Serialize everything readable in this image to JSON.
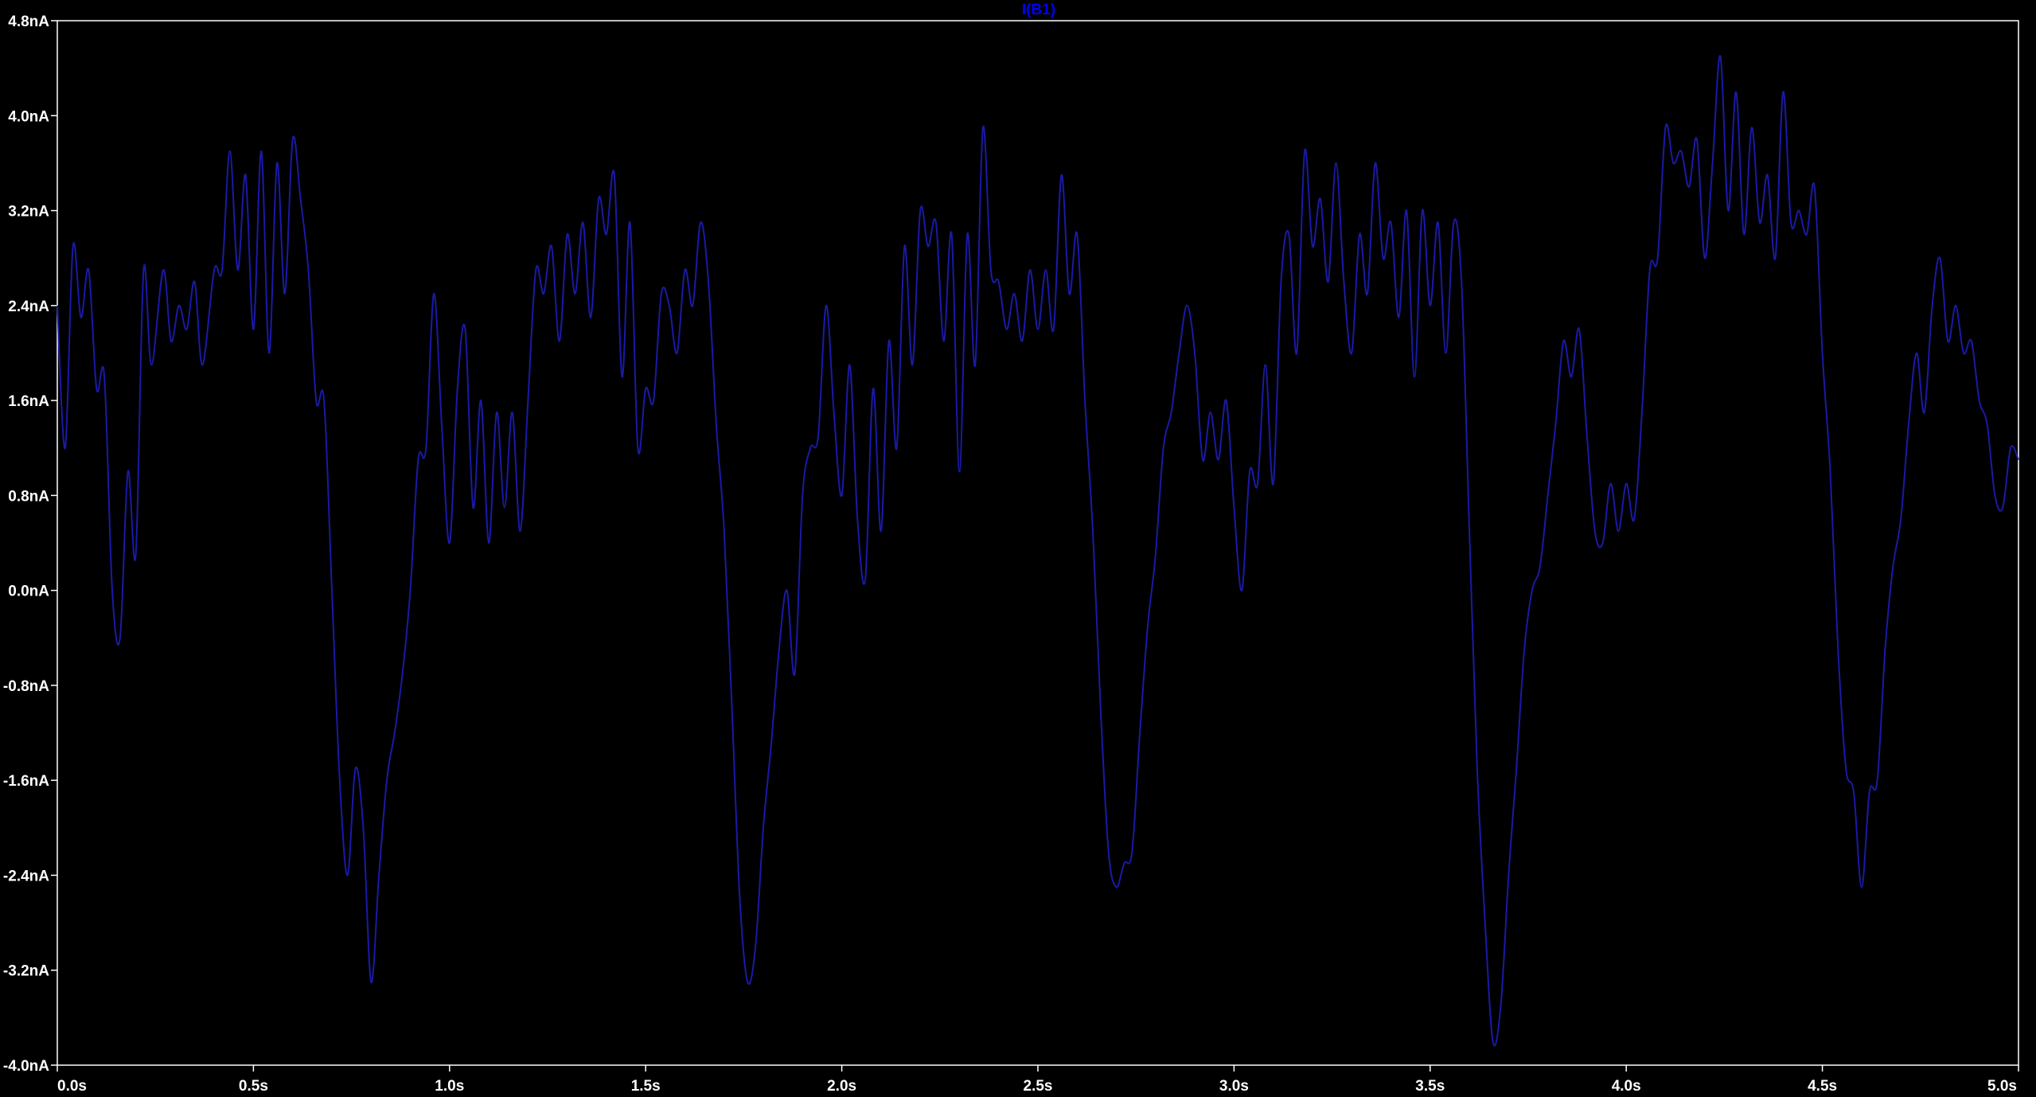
{
  "chart_data": {
    "type": "line",
    "title": "I(B1)",
    "title_color": "#0000ff",
    "background_color": "#000000",
    "axis_color": "#ffffff",
    "tick_label_color": "#ffffff",
    "trace_color": "#1a1aa6",
    "grid": false,
    "xlim": [
      0.0,
      5.0
    ],
    "ylim": [
      -4.0,
      4.8
    ],
    "x_ticks": [
      {
        "value": 0.0,
        "label": "0.0s"
      },
      {
        "value": 0.5,
        "label": "0.5s"
      },
      {
        "value": 1.0,
        "label": "1.0s"
      },
      {
        "value": 1.5,
        "label": "1.5s"
      },
      {
        "value": 2.0,
        "label": "2.0s"
      },
      {
        "value": 2.5,
        "label": "2.5s"
      },
      {
        "value": 3.0,
        "label": "3.0s"
      },
      {
        "value": 3.5,
        "label": "3.5s"
      },
      {
        "value": 4.0,
        "label": "4.0s"
      },
      {
        "value": 4.5,
        "label": "4.5s"
      },
      {
        "value": 5.0,
        "label": "5.0s"
      }
    ],
    "y_ticks": [
      {
        "value": 4.8,
        "label": "4.8nA"
      },
      {
        "value": 4.0,
        "label": "4.0nA"
      },
      {
        "value": 3.2,
        "label": "3.2nA"
      },
      {
        "value": 2.4,
        "label": "2.4nA"
      },
      {
        "value": 1.6,
        "label": "1.6nA"
      },
      {
        "value": 0.8,
        "label": "0.8nA"
      },
      {
        "value": 0.0,
        "label": "0.0nA"
      },
      {
        "value": -0.8,
        "label": "-0.8nA"
      },
      {
        "value": -1.6,
        "label": "-1.6nA"
      },
      {
        "value": -2.4,
        "label": "-2.4nA"
      },
      {
        "value": -3.2,
        "label": "-3.2nA"
      },
      {
        "value": -4.0,
        "label": "-4.0nA"
      }
    ],
    "series": [
      {
        "points": [
          [
            0.0,
            2.4
          ],
          [
            0.02,
            1.2
          ],
          [
            0.04,
            2.9
          ],
          [
            0.06,
            2.3
          ],
          [
            0.08,
            2.7
          ],
          [
            0.1,
            1.7
          ],
          [
            0.12,
            1.8
          ],
          [
            0.14,
            0.0
          ],
          [
            0.16,
            -0.4
          ],
          [
            0.18,
            1.0
          ],
          [
            0.2,
            0.3
          ],
          [
            0.22,
            2.7
          ],
          [
            0.24,
            1.9
          ],
          [
            0.27,
            2.7
          ],
          [
            0.29,
            2.1
          ],
          [
            0.31,
            2.4
          ],
          [
            0.33,
            2.2
          ],
          [
            0.35,
            2.6
          ],
          [
            0.37,
            1.9
          ],
          [
            0.4,
            2.7
          ],
          [
            0.42,
            2.7
          ],
          [
            0.44,
            3.7
          ],
          [
            0.46,
            2.7
          ],
          [
            0.48,
            3.5
          ],
          [
            0.5,
            2.2
          ],
          [
            0.52,
            3.7
          ],
          [
            0.54,
            2.0
          ],
          [
            0.56,
            3.6
          ],
          [
            0.58,
            2.5
          ],
          [
            0.6,
            3.8
          ],
          [
            0.62,
            3.3
          ],
          [
            0.64,
            2.7
          ],
          [
            0.66,
            1.6
          ],
          [
            0.68,
            1.6
          ],
          [
            0.7,
            0.0
          ],
          [
            0.72,
            -1.6
          ],
          [
            0.74,
            -2.4
          ],
          [
            0.76,
            -1.5
          ],
          [
            0.78,
            -2.0
          ],
          [
            0.8,
            -3.3
          ],
          [
            0.82,
            -2.4
          ],
          [
            0.84,
            -1.6
          ],
          [
            0.86,
            -1.2
          ],
          [
            0.88,
            -0.7
          ],
          [
            0.9,
            0.0
          ],
          [
            0.92,
            1.1
          ],
          [
            0.94,
            1.2
          ],
          [
            0.96,
            2.5
          ],
          [
            0.98,
            1.4
          ],
          [
            1.0,
            0.4
          ],
          [
            1.02,
            1.7
          ],
          [
            1.04,
            2.2
          ],
          [
            1.06,
            0.7
          ],
          [
            1.08,
            1.6
          ],
          [
            1.1,
            0.4
          ],
          [
            1.12,
            1.5
          ],
          [
            1.14,
            0.7
          ],
          [
            1.16,
            1.5
          ],
          [
            1.18,
            0.5
          ],
          [
            1.2,
            1.6
          ],
          [
            1.22,
            2.7
          ],
          [
            1.24,
            2.5
          ],
          [
            1.26,
            2.9
          ],
          [
            1.28,
            2.1
          ],
          [
            1.3,
            3.0
          ],
          [
            1.32,
            2.5
          ],
          [
            1.34,
            3.1
          ],
          [
            1.36,
            2.3
          ],
          [
            1.38,
            3.3
          ],
          [
            1.4,
            3.0
          ],
          [
            1.42,
            3.5
          ],
          [
            1.44,
            1.8
          ],
          [
            1.46,
            3.1
          ],
          [
            1.48,
            1.2
          ],
          [
            1.5,
            1.7
          ],
          [
            1.52,
            1.6
          ],
          [
            1.54,
            2.5
          ],
          [
            1.56,
            2.4
          ],
          [
            1.58,
            2.0
          ],
          [
            1.6,
            2.7
          ],
          [
            1.62,
            2.4
          ],
          [
            1.64,
            3.1
          ],
          [
            1.66,
            2.6
          ],
          [
            1.68,
            1.4
          ],
          [
            1.7,
            0.5
          ],
          [
            1.72,
            -1.0
          ],
          [
            1.74,
            -2.6
          ],
          [
            1.76,
            -3.3
          ],
          [
            1.78,
            -3.0
          ],
          [
            1.8,
            -2.0
          ],
          [
            1.82,
            -1.3
          ],
          [
            1.84,
            -0.5
          ],
          [
            1.86,
            0.0
          ],
          [
            1.88,
            -0.7
          ],
          [
            1.9,
            0.8
          ],
          [
            1.92,
            1.2
          ],
          [
            1.94,
            1.3
          ],
          [
            1.96,
            2.4
          ],
          [
            1.98,
            1.5
          ],
          [
            2.0,
            0.8
          ],
          [
            2.02,
            1.9
          ],
          [
            2.04,
            0.6
          ],
          [
            2.06,
            0.1
          ],
          [
            2.08,
            1.7
          ],
          [
            2.1,
            0.5
          ],
          [
            2.12,
            2.1
          ],
          [
            2.14,
            1.2
          ],
          [
            2.16,
            2.9
          ],
          [
            2.18,
            1.9
          ],
          [
            2.2,
            3.2
          ],
          [
            2.22,
            2.9
          ],
          [
            2.24,
            3.1
          ],
          [
            2.26,
            2.1
          ],
          [
            2.28,
            3.0
          ],
          [
            2.3,
            1.0
          ],
          [
            2.32,
            3.0
          ],
          [
            2.34,
            1.9
          ],
          [
            2.36,
            3.9
          ],
          [
            2.38,
            2.7
          ],
          [
            2.4,
            2.6
          ],
          [
            2.42,
            2.2
          ],
          [
            2.44,
            2.5
          ],
          [
            2.46,
            2.1
          ],
          [
            2.48,
            2.7
          ],
          [
            2.5,
            2.2
          ],
          [
            2.52,
            2.7
          ],
          [
            2.54,
            2.2
          ],
          [
            2.56,
            3.5
          ],
          [
            2.58,
            2.5
          ],
          [
            2.6,
            3.0
          ],
          [
            2.62,
            1.6
          ],
          [
            2.64,
            0.5
          ],
          [
            2.66,
            -1.0
          ],
          [
            2.68,
            -2.2
          ],
          [
            2.7,
            -2.5
          ],
          [
            2.72,
            -2.3
          ],
          [
            2.74,
            -2.2
          ],
          [
            2.76,
            -1.2
          ],
          [
            2.78,
            -0.3
          ],
          [
            2.8,
            0.3
          ],
          [
            2.82,
            1.2
          ],
          [
            2.84,
            1.5
          ],
          [
            2.86,
            2.0
          ],
          [
            2.88,
            2.4
          ],
          [
            2.9,
            2.0
          ],
          [
            2.92,
            1.1
          ],
          [
            2.94,
            1.5
          ],
          [
            2.96,
            1.1
          ],
          [
            2.98,
            1.6
          ],
          [
            3.0,
            0.7
          ],
          [
            3.02,
            0.0
          ],
          [
            3.04,
            1.0
          ],
          [
            3.06,
            0.9
          ],
          [
            3.08,
            1.9
          ],
          [
            3.1,
            0.9
          ],
          [
            3.12,
            2.6
          ],
          [
            3.14,
            3.0
          ],
          [
            3.16,
            2.0
          ],
          [
            3.18,
            3.7
          ],
          [
            3.2,
            2.9
          ],
          [
            3.22,
            3.3
          ],
          [
            3.24,
            2.6
          ],
          [
            3.26,
            3.6
          ],
          [
            3.28,
            2.6
          ],
          [
            3.3,
            2.0
          ],
          [
            3.32,
            3.0
          ],
          [
            3.34,
            2.5
          ],
          [
            3.36,
            3.6
          ],
          [
            3.38,
            2.8
          ],
          [
            3.4,
            3.1
          ],
          [
            3.42,
            2.3
          ],
          [
            3.44,
            3.2
          ],
          [
            3.46,
            1.8
          ],
          [
            3.48,
            3.2
          ],
          [
            3.5,
            2.4
          ],
          [
            3.52,
            3.1
          ],
          [
            3.54,
            2.0
          ],
          [
            3.56,
            3.1
          ],
          [
            3.58,
            2.6
          ],
          [
            3.6,
            0.5
          ],
          [
            3.62,
            -1.5
          ],
          [
            3.64,
            -2.8
          ],
          [
            3.66,
            -3.8
          ],
          [
            3.68,
            -3.5
          ],
          [
            3.7,
            -2.4
          ],
          [
            3.72,
            -1.5
          ],
          [
            3.74,
            -0.5
          ],
          [
            3.76,
            0.0
          ],
          [
            3.78,
            0.2
          ],
          [
            3.8,
            0.8
          ],
          [
            3.82,
            1.4
          ],
          [
            3.84,
            2.1
          ],
          [
            3.86,
            1.8
          ],
          [
            3.88,
            2.2
          ],
          [
            3.9,
            1.3
          ],
          [
            3.92,
            0.5
          ],
          [
            3.94,
            0.4
          ],
          [
            3.96,
            0.9
          ],
          [
            3.98,
            0.5
          ],
          [
            4.0,
            0.9
          ],
          [
            4.02,
            0.6
          ],
          [
            4.04,
            1.5
          ],
          [
            4.06,
            2.7
          ],
          [
            4.08,
            2.8
          ],
          [
            4.1,
            3.9
          ],
          [
            4.12,
            3.6
          ],
          [
            4.14,
            3.7
          ],
          [
            4.16,
            3.4
          ],
          [
            4.18,
            3.8
          ],
          [
            4.2,
            2.8
          ],
          [
            4.22,
            3.6
          ],
          [
            4.24,
            4.5
          ],
          [
            4.26,
            3.2
          ],
          [
            4.28,
            4.2
          ],
          [
            4.3,
            3.0
          ],
          [
            4.32,
            3.9
          ],
          [
            4.34,
            3.1
          ],
          [
            4.36,
            3.5
          ],
          [
            4.38,
            2.8
          ],
          [
            4.4,
            4.2
          ],
          [
            4.42,
            3.1
          ],
          [
            4.44,
            3.2
          ],
          [
            4.46,
            3.0
          ],
          [
            4.48,
            3.4
          ],
          [
            4.5,
            2.0
          ],
          [
            4.52,
            1.0
          ],
          [
            4.54,
            -0.5
          ],
          [
            4.56,
            -1.5
          ],
          [
            4.58,
            -1.7
          ],
          [
            4.6,
            -2.5
          ],
          [
            4.62,
            -1.7
          ],
          [
            4.64,
            -1.6
          ],
          [
            4.66,
            -0.5
          ],
          [
            4.68,
            0.2
          ],
          [
            4.7,
            0.6
          ],
          [
            4.72,
            1.4
          ],
          [
            4.74,
            2.0
          ],
          [
            4.76,
            1.5
          ],
          [
            4.78,
            2.4
          ],
          [
            4.8,
            2.8
          ],
          [
            4.82,
            2.1
          ],
          [
            4.84,
            2.4
          ],
          [
            4.86,
            2.0
          ],
          [
            4.88,
            2.1
          ],
          [
            4.9,
            1.6
          ],
          [
            4.92,
            1.4
          ],
          [
            4.94,
            0.8
          ],
          [
            4.96,
            0.7
          ],
          [
            4.98,
            1.2
          ],
          [
            5.0,
            1.1
          ]
        ]
      }
    ]
  }
}
